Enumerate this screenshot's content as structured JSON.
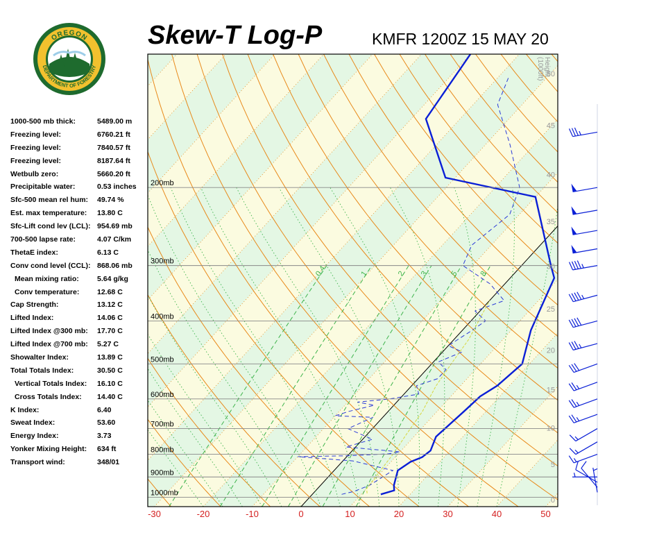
{
  "header": {
    "title": "Skew-T Log-P",
    "station": "KMFR 1200Z 15 MAY 20"
  },
  "logo": {
    "text_top": "OREGON",
    "text_bottom": "DEPARTMENT OF FORESTRY",
    "colors": {
      "ring": "#1e6b2e",
      "gold": "#f2c12e",
      "sky": "#ffffff"
    }
  },
  "stats": [
    {
      "label": "1000-500 mb thick:",
      "value": "5489.00 m",
      "indent": false
    },
    {
      "label": "Freezing level:",
      "value": "6760.21 ft",
      "indent": false
    },
    {
      "label": "Freezing level:",
      "value": "7840.57 ft",
      "indent": false
    },
    {
      "label": "Freezing level:",
      "value": "8187.64 ft",
      "indent": false
    },
    {
      "label": "Wetbulb zero:",
      "value": "5660.20 ft",
      "indent": false
    },
    {
      "label": "Precipitable water:",
      "value": "0.53 inches",
      "indent": false
    },
    {
      "label": "Sfc-500 mean rel hum:",
      "value": "49.74 %",
      "indent": false
    },
    {
      "label": "Est. max temperature:",
      "value": "13.80 C",
      "indent": false
    },
    {
      "label": "Sfc-Lift cond lev (LCL):",
      "value": "954.69 mb",
      "indent": false
    },
    {
      "label": "700-500 lapse rate:",
      "value": "4.07 C/km",
      "indent": false
    },
    {
      "label": "ThetaE index:",
      "value": "6.13 C",
      "indent": false
    },
    {
      "label": "Conv cond level (CCL):",
      "value": "868.06 mb",
      "indent": false
    },
    {
      "label": "Mean mixing ratio:",
      "value": "5.64 g/kg",
      "indent": true
    },
    {
      "label": "Conv temperature:",
      "value": "12.68 C",
      "indent": true
    },
    {
      "label": "Cap Strength:",
      "value": "13.12 C",
      "indent": false
    },
    {
      "label": "Lifted Index:",
      "value": "14.06 C",
      "indent": false
    },
    {
      "label": "Lifted Index @300 mb:",
      "value": "17.70 C",
      "indent": false
    },
    {
      "label": "Lifted Index @700 mb:",
      "value": "5.27 C",
      "indent": false
    },
    {
      "label": "Showalter Index:",
      "value": "13.89 C",
      "indent": false
    },
    {
      "label": "Total Totals Index:",
      "value": "30.50 C",
      "indent": false
    },
    {
      "label": "Vertical Totals Index:",
      "value": "16.10 C",
      "indent": true
    },
    {
      "label": "Cross Totals Index:",
      "value": "14.40 C",
      "indent": true
    },
    {
      "label": "K Index:",
      "value": "6.40",
      "indent": false
    },
    {
      "label": "Sweat Index:",
      "value": "53.60",
      "indent": false
    },
    {
      "label": "Energy Index:",
      "value": "3.73",
      "indent": false
    },
    {
      "label": "Yonker Mixing Height:",
      "value": "634 ft",
      "indent": false
    },
    {
      "label": "Transport wind:",
      "value": "348/01",
      "indent": false
    }
  ],
  "chart_data": {
    "type": "line",
    "xlabel": "",
    "ylabel": "",
    "x_ticks": [
      -30,
      -20,
      -10,
      0,
      10,
      20,
      30,
      40,
      50
    ],
    "xlim": [
      -30,
      50
    ],
    "pressure_labels": [
      {
        "p": 200,
        "label": "200mb"
      },
      {
        "p": 300,
        "label": "300mb"
      },
      {
        "p": 400,
        "label": "400mb"
      },
      {
        "p": 500,
        "label": "500mb"
      },
      {
        "p": 600,
        "label": "600mb"
      },
      {
        "p": 700,
        "label": "700mb"
      },
      {
        "p": 800,
        "label": "800mb"
      },
      {
        "p": 900,
        "label": "900mb"
      },
      {
        "p": 1000,
        "label": "1000mb"
      }
    ],
    "height_axis": {
      "label_line1": "Height",
      "label_line2": "(1000ft)",
      "ticks": [
        0,
        5,
        10,
        15,
        20,
        25,
        30,
        35,
        40,
        45,
        50
      ]
    },
    "mixing_ratio_labels": [
      "0.4",
      "1",
      "2",
      "3",
      "5",
      "8"
    ],
    "series": [
      {
        "kind": "temperature",
        "color": "#0a1fd6",
        "points": [
          [
            14,
            985
          ],
          [
            16,
            965
          ],
          [
            15,
            940
          ],
          [
            13,
            870
          ],
          [
            14,
            832
          ],
          [
            15.5,
            812
          ],
          [
            16,
            785
          ],
          [
            14.5,
            730
          ],
          [
            15.5,
            640
          ],
          [
            16,
            592
          ],
          [
            17.5,
            560
          ],
          [
            18.5,
            500
          ],
          [
            14,
            420
          ],
          [
            9,
            320
          ],
          [
            6,
            300
          ],
          [
            -10,
            210
          ],
          [
            -32,
            190
          ],
          [
            -47,
            140
          ],
          [
            -50,
            100
          ]
        ]
      },
      {
        "kind": "dewpoint",
        "color": "#2a3ad8",
        "points": [
          [
            6,
            985
          ],
          [
            8,
            970
          ],
          [
            10,
            940
          ],
          [
            12,
            870
          ],
          [
            2,
            828
          ],
          [
            -10,
            810
          ],
          [
            0,
            806
          ],
          [
            8,
            798
          ],
          [
            10,
            790
          ],
          [
            -2,
            770
          ],
          [
            2,
            740
          ],
          [
            -5,
            700
          ],
          [
            -2,
            660
          ],
          [
            -10,
            655
          ],
          [
            -8,
            640
          ],
          [
            -4,
            620
          ],
          [
            -8,
            610
          ],
          [
            -2,
            600
          ],
          [
            3,
            585
          ],
          [
            1,
            560
          ],
          [
            4,
            540
          ],
          [
            4,
            515
          ],
          [
            1,
            495
          ],
          [
            4,
            470
          ],
          [
            0,
            455
          ],
          [
            2,
            420
          ],
          [
            3,
            400
          ],
          [
            -1,
            380
          ],
          [
            3,
            360
          ],
          [
            -3,
            330
          ],
          [
            -12,
            300
          ],
          [
            -14,
            270
          ],
          [
            -12,
            230
          ],
          [
            -15,
            200
          ],
          [
            -25,
            160
          ],
          [
            -35,
            130
          ],
          [
            -38,
            112
          ]
        ]
      },
      {
        "kind": "parcel",
        "color": "#d6d63a",
        "points": [
          [
            11,
            980
          ],
          [
            10,
            955
          ],
          [
            9,
            800
          ],
          [
            8,
            720
          ],
          [
            7,
            640
          ],
          [
            6,
            600
          ],
          [
            5,
            560
          ],
          [
            4,
            500
          ],
          [
            3,
            440
          ],
          [
            0,
            360
          ]
        ]
      }
    ],
    "wind_barbs": [
      {
        "p": 975,
        "dir": 350,
        "spd": 5
      },
      {
        "p": 950,
        "dir": 320,
        "spd": 10
      },
      {
        "p": 925,
        "dir": 300,
        "spd": 10
      },
      {
        "p": 900,
        "dir": 270,
        "spd": 5
      },
      {
        "p": 800,
        "dir": 250,
        "spd": 15
      },
      {
        "p": 750,
        "dir": 240,
        "spd": 15
      },
      {
        "p": 700,
        "dir": 240,
        "spd": 15
      },
      {
        "p": 650,
        "dir": 250,
        "spd": 25
      },
      {
        "p": 600,
        "dir": 250,
        "spd": 25
      },
      {
        "p": 550,
        "dir": 250,
        "spd": 25
      },
      {
        "p": 500,
        "dir": 250,
        "spd": 30
      },
      {
        "p": 450,
        "dir": 255,
        "spd": 35
      },
      {
        "p": 400,
        "dir": 255,
        "spd": 40
      },
      {
        "p": 350,
        "dir": 255,
        "spd": 45
      },
      {
        "p": 300,
        "dir": 260,
        "spd": 45
      },
      {
        "p": 275,
        "dir": 260,
        "spd": 50
      },
      {
        "p": 250,
        "dir": 260,
        "spd": 50
      },
      {
        "p": 225,
        "dir": 260,
        "spd": 50
      },
      {
        "p": 200,
        "dir": 260,
        "spd": 50
      },
      {
        "p": 150,
        "dir": 260,
        "spd": 35
      }
    ],
    "colors": {
      "dry_adiabat": "#e8891a",
      "moist_adiabat": "#3cb34a",
      "isotherm": "#e0881c",
      "mixing_ratio": "#3cb34a",
      "band_a": "#fbfbe0",
      "band_b": "#e4f7e4",
      "isobar": "#888888",
      "x_tick": "#d42020",
      "barb": "#0a1fd6"
    }
  }
}
